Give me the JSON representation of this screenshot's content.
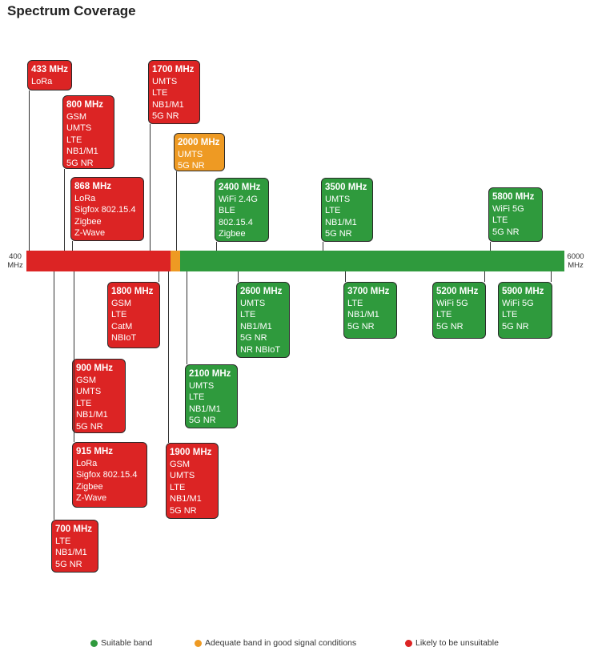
{
  "title": "Spectrum Coverage",
  "axis": {
    "start": "400",
    "start_unit": "MHz",
    "end": "6000",
    "end_unit": "MHz"
  },
  "colors": {
    "suitable": "#2f9a3d",
    "adequate": "#ee9a23",
    "unsuitable": "#dc2424"
  },
  "bands": [
    {
      "freq": "433 MHz",
      "tech": [
        "LoRa"
      ],
      "status": "unsuitable"
    },
    {
      "freq": "800 MHz",
      "tech": [
        "GSM",
        "UMTS",
        "LTE",
        "NB1/M1",
        "5G NR"
      ],
      "status": "unsuitable"
    },
    {
      "freq": "868 MHz",
      "tech": [
        "LoRa",
        "Sigfox 802.15.4",
        "Zigbee",
        "Z-Wave"
      ],
      "status": "unsuitable"
    },
    {
      "freq": "1700 MHz",
      "tech": [
        "UMTS",
        "LTE",
        "NB1/M1",
        "5G NR"
      ],
      "status": "unsuitable"
    },
    {
      "freq": "2000 MHz",
      "tech": [
        "UMTS",
        "5G NR"
      ],
      "status": "adequate"
    },
    {
      "freq": "2400 MHz",
      "tech": [
        "WiFi 2.4G",
        "BLE",
        "802.15.4",
        "Zigbee"
      ],
      "status": "suitable"
    },
    {
      "freq": "3500 MHz",
      "tech": [
        "UMTS",
        "LTE",
        "NB1/M1",
        "5G NR"
      ],
      "status": "suitable"
    },
    {
      "freq": "5800 MHz",
      "tech": [
        "WiFi 5G",
        "LTE",
        "5G NR"
      ],
      "status": "suitable"
    },
    {
      "freq": "1800 MHz",
      "tech": [
        "GSM",
        "LTE",
        "CatM",
        "NBIoT"
      ],
      "status": "unsuitable"
    },
    {
      "freq": "2600 MHz",
      "tech": [
        "UMTS",
        "LTE",
        "NB1/M1",
        "5G NR",
        "NR NBIoT"
      ],
      "status": "suitable"
    },
    {
      "freq": "3700 MHz",
      "tech": [
        "LTE",
        "NB1/M1",
        "5G NR"
      ],
      "status": "suitable"
    },
    {
      "freq": "5200 MHz",
      "tech": [
        "WiFi 5G",
        "LTE",
        "5G NR"
      ],
      "status": "suitable"
    },
    {
      "freq": "5900 MHz",
      "tech": [
        "WiFi 5G",
        "LTE",
        "5G NR"
      ],
      "status": "suitable"
    },
    {
      "freq": "900 MHz",
      "tech": [
        "GSM",
        "UMTS",
        "LTE",
        "NB1/M1",
        "5G NR"
      ],
      "status": "unsuitable"
    },
    {
      "freq": "2100 MHz",
      "tech": [
        "UMTS",
        "LTE",
        "NB1/M1",
        "5G NR"
      ],
      "status": "suitable"
    },
    {
      "freq": "915 MHz",
      "tech": [
        "LoRa",
        "Sigfox 802.15.4",
        "Zigbee",
        "Z-Wave"
      ],
      "status": "unsuitable"
    },
    {
      "freq": "1900 MHz",
      "tech": [
        "GSM",
        "UMTS",
        "LTE",
        "NB1/M1",
        "5G NR"
      ],
      "status": "unsuitable"
    },
    {
      "freq": "700 MHz",
      "tech": [
        "LTE",
        "NB1/M1",
        "5G NR"
      ],
      "status": "unsuitable"
    }
  ],
  "legend": [
    {
      "label": "Suitable band",
      "status": "suitable"
    },
    {
      "label": "Adequate band in good signal conditions",
      "status": "adequate"
    },
    {
      "label": "Likely to be unsuitable",
      "status": "unsuitable"
    }
  ]
}
